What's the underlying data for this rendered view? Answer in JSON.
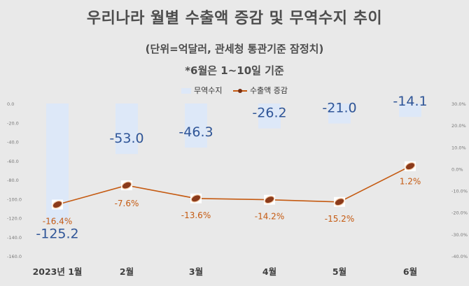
{
  "header": {
    "title": "우리나라 월별 수출액 증감 및 무역수지 추이",
    "subtitle": "(단위=억달러, 관세청 통관기준 잠정치)",
    "note": "*6월은 1~10일 기준"
  },
  "legend": {
    "bar_label": "무역수지",
    "line_label": "수출액 증감"
  },
  "colors": {
    "background": "#e9e9e9",
    "bar": "#dde8f8",
    "bar_label": "#2f5597",
    "line": "#c55a11",
    "line_label": "#c55a11",
    "axis_text": "#777777"
  },
  "chart_data": {
    "type": "bar+line",
    "categories": [
      "2023년 1월",
      "2월",
      "3월",
      "4월",
      "5월",
      "6월"
    ],
    "series": [
      {
        "name": "무역수지",
        "type": "bar",
        "axis": "left",
        "values": [
          -125.2,
          -53.0,
          -46.3,
          -26.2,
          -21.0,
          -14.1
        ],
        "labels": [
          "-125.2",
          "-53.0",
          "-46.3",
          "-26.2",
          "-21.0",
          "-14.1"
        ]
      },
      {
        "name": "수출액 증감",
        "type": "line",
        "axis": "right",
        "values": [
          -16.4,
          -7.6,
          -13.6,
          -14.2,
          -15.2,
          1.2
        ],
        "labels": [
          "-16.4%",
          "-7.6%",
          "-13.6%",
          "-14.2%",
          "-15.2%",
          "1.2%"
        ]
      }
    ],
    "y_left": {
      "range": [
        -160,
        0
      ],
      "ticks": [
        "0.0",
        "-20.0",
        "-40.0",
        "-60.0",
        "-80.0",
        "-100.0",
        "-120.0",
        "-140.0",
        "-160.0"
      ],
      "tick_values": [
        0,
        -20,
        -40,
        -60,
        -80,
        -100,
        -120,
        -140,
        -160
      ]
    },
    "y_right": {
      "range": [
        -40,
        30
      ],
      "ticks": [
        "30.0%",
        "20.0%",
        "10.0%",
        "0.0%",
        "-10.0%",
        "-20.0%",
        "-30.0%",
        "-40.0%"
      ],
      "tick_values": [
        30,
        20,
        10,
        0,
        -10,
        -20,
        -30,
        -40
      ]
    },
    "grid": false,
    "legend_position": "top"
  }
}
